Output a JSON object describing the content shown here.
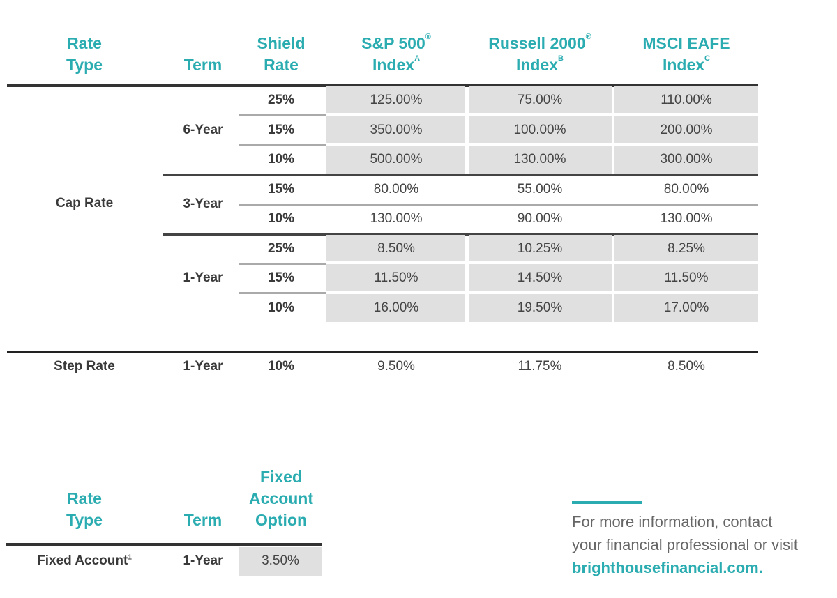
{
  "main_table": {
    "headers": {
      "rate_type": [
        "Rate",
        "Type"
      ],
      "term": "Term",
      "shield_rate": [
        "Shield",
        "Rate"
      ],
      "sp500": {
        "line1": "S&P 500",
        "mark": "®",
        "line2": "Index",
        "sup": "A"
      },
      "russell": {
        "line1": "Russell 2000",
        "mark": "®",
        "line2": "Index",
        "sup": "B"
      },
      "msci": {
        "line1": "MSCI EAFE",
        "line2": "Index",
        "sup": "C"
      }
    },
    "cap_rate_label": "Cap Rate",
    "groups": [
      {
        "term": "6-Year",
        "shaded": true,
        "rows": [
          {
            "shield": "25%",
            "values": [
              "125.00%",
              "75.00%",
              "110.00%"
            ]
          },
          {
            "shield": "15%",
            "values": [
              "350.00%",
              "100.00%",
              "200.00%"
            ]
          },
          {
            "shield": "10%",
            "values": [
              "500.00%",
              "130.00%",
              "300.00%"
            ]
          }
        ]
      },
      {
        "term": "3-Year",
        "shaded": false,
        "rows": [
          {
            "shield": "15%",
            "values": [
              "80.00%",
              "55.00%",
              "80.00%"
            ]
          },
          {
            "shield": "10%",
            "values": [
              "130.00%",
              "90.00%",
              "130.00%"
            ]
          }
        ]
      },
      {
        "term": "1-Year",
        "shaded": true,
        "rows": [
          {
            "shield": "25%",
            "values": [
              "8.50%",
              "10.25%",
              "8.25%"
            ]
          },
          {
            "shield": "15%",
            "values": [
              "11.50%",
              "14.50%",
              "11.50%"
            ]
          },
          {
            "shield": "10%",
            "values": [
              "16.00%",
              "19.50%",
              "17.00%"
            ]
          }
        ]
      }
    ],
    "step_row": {
      "rate_type": "Step Rate",
      "term": "1-Year",
      "shield": "10%",
      "values": [
        "9.50%",
        "11.75%",
        "8.50%"
      ]
    }
  },
  "fixed_table": {
    "headers": {
      "rate_type": [
        "Rate",
        "Type"
      ],
      "term": "Term",
      "option": [
        "Fixed",
        "Account",
        "Option"
      ]
    },
    "row": {
      "rate_type": "Fixed Account",
      "sup": "1",
      "term": "1-Year",
      "value": "3.50%"
    }
  },
  "info": {
    "line1": "For more information, contact",
    "line2": "your financial professional or visit",
    "link": "brighthousefinancial.com."
  },
  "colors": {
    "accent": "#2aacb0",
    "shade": "#e0e0e0",
    "rule": "#333333"
  }
}
